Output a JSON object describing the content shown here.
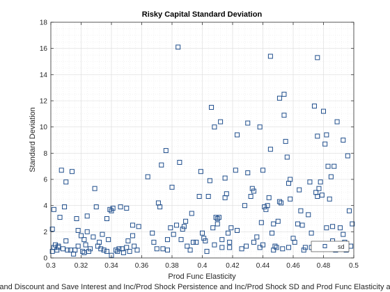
{
  "chart_data": {
    "type": "scatter",
    "title": "Risky Capital Standard Deviation",
    "xlabel": "Prod Func Elasticity",
    "ylabel": "Standard Deviation",
    "caption": "and Discount and Save Interest and Inc/Prod Shock Persistence and Inc/Prod Shock SD and Prod Func Elasticity a",
    "xlim": [
      0.3,
      0.5
    ],
    "ylim": [
      0,
      18
    ],
    "xticks": [
      "0.3",
      "0.32",
      "0.34",
      "0.36",
      "0.38",
      "0.4",
      "0.42",
      "0.44",
      "0.46",
      "0.48",
      "0.5"
    ],
    "yticks": [
      "0",
      "2",
      "4",
      "6",
      "8",
      "10",
      "12",
      "14",
      "16",
      "18"
    ],
    "grid": true,
    "minor_grid": true,
    "marker": "square",
    "marker_color": "#1f4e8c",
    "legend": {
      "entries": [
        "sd"
      ],
      "placement": "bottom-right"
    },
    "series": [
      {
        "name": "sd",
        "points": [
          [
            0.301,
            0.5
          ],
          [
            0.301,
            2.2
          ],
          [
            0.302,
            3.7
          ],
          [
            0.302,
            0.8
          ],
          [
            0.303,
            1.0
          ],
          [
            0.304,
            0.6
          ],
          [
            0.305,
            0.8
          ],
          [
            0.305,
            0.9
          ],
          [
            0.306,
            3.1
          ],
          [
            0.307,
            6.7
          ],
          [
            0.308,
            0.7
          ],
          [
            0.309,
            3.9
          ],
          [
            0.31,
            1.3
          ],
          [
            0.31,
            5.8
          ],
          [
            0.311,
            0.6
          ],
          [
            0.313,
            0.6
          ],
          [
            0.314,
            6.6
          ],
          [
            0.315,
            0.3
          ],
          [
            0.316,
            0.6
          ],
          [
            0.317,
            3.0
          ],
          [
            0.318,
            2.1
          ],
          [
            0.318,
            0.9
          ],
          [
            0.32,
            1.7
          ],
          [
            0.321,
            0.5
          ],
          [
            0.322,
            1.4
          ],
          [
            0.322,
            0.4
          ],
          [
            0.323,
            1.0
          ],
          [
            0.324,
            3.2
          ],
          [
            0.324,
            2.0
          ],
          [
            0.325,
            0.5
          ],
          [
            0.326,
            0.7
          ],
          [
            0.328,
            1.6
          ],
          [
            0.329,
            5.3
          ],
          [
            0.33,
            3.9
          ],
          [
            0.331,
            0.9
          ],
          [
            0.332,
            1.2
          ],
          [
            0.333,
            0.7
          ],
          [
            0.334,
            1.8
          ],
          [
            0.335,
            0.6
          ],
          [
            0.337,
            3.0
          ],
          [
            0.337,
            0.5
          ],
          [
            0.338,
            1.4
          ],
          [
            0.339,
            3.7
          ],
          [
            0.34,
            0.2
          ],
          [
            0.34,
            3.6
          ],
          [
            0.341,
            3.8
          ],
          [
            0.343,
            0.6
          ],
          [
            0.344,
            0.5
          ],
          [
            0.345,
            0.7
          ],
          [
            0.346,
            3.9
          ],
          [
            0.347,
            0.7
          ],
          [
            0.348,
            0.4
          ],
          [
            0.35,
            3.8
          ],
          [
            0.35,
            0.8
          ],
          [
            0.351,
            1.3
          ],
          [
            0.352,
            0.5
          ],
          [
            0.354,
            1.7
          ],
          [
            0.354,
            2.5
          ],
          [
            0.355,
            0.9
          ],
          [
            0.357,
            0.6
          ],
          [
            0.358,
            2.4
          ],
          [
            0.364,
            6.2
          ],
          [
            0.367,
            1.9
          ],
          [
            0.368,
            1.2
          ],
          [
            0.37,
            0.7
          ],
          [
            0.371,
            4.2
          ],
          [
            0.372,
            3.9
          ],
          [
            0.373,
            7.1
          ],
          [
            0.374,
            0.7
          ],
          [
            0.376,
            8.2
          ],
          [
            0.377,
            0.6
          ],
          [
            0.377,
            1.4
          ],
          [
            0.379,
            2.3
          ],
          [
            0.38,
            5.4
          ],
          [
            0.381,
            1.8
          ],
          [
            0.383,
            2.5
          ],
          [
            0.384,
            16.1
          ],
          [
            0.385,
            7.3
          ],
          [
            0.386,
            1.4
          ],
          [
            0.387,
            2.2
          ],
          [
            0.388,
            2.4
          ],
          [
            0.389,
            2.8
          ],
          [
            0.39,
            0.9
          ],
          [
            0.392,
            0.6
          ],
          [
            0.393,
            3.4
          ],
          [
            0.394,
            1.2
          ],
          [
            0.396,
            1.2
          ],
          [
            0.398,
            4.7
          ],
          [
            0.399,
            6.6
          ],
          [
            0.4,
            1.9
          ],
          [
            0.401,
            1.5
          ],
          [
            0.402,
            1.3
          ],
          [
            0.403,
            0.5
          ],
          [
            0.404,
            4.7
          ],
          [
            0.405,
            5.9
          ],
          [
            0.406,
            11.5
          ],
          [
            0.407,
            2.3
          ],
          [
            0.408,
            10.0
          ],
          [
            0.408,
            1.0
          ],
          [
            0.409,
            3.1
          ],
          [
            0.41,
            2.6
          ],
          [
            0.41,
            3.0
          ],
          [
            0.411,
            3.1
          ],
          [
            0.412,
            10.4
          ],
          [
            0.413,
            1.4
          ],
          [
            0.413,
            0.8
          ],
          [
            0.415,
            6.1
          ],
          [
            0.415,
            4.6
          ],
          [
            0.416,
            4.9
          ],
          [
            0.417,
            1.9
          ],
          [
            0.418,
            1.2
          ],
          [
            0.418,
            0.8
          ],
          [
            0.419,
            2.3
          ],
          [
            0.422,
            6.7
          ],
          [
            0.423,
            9.4
          ],
          [
            0.423,
            2.1
          ],
          [
            0.426,
            0.7
          ],
          [
            0.428,
            4.0
          ],
          [
            0.429,
            0.9
          ],
          [
            0.43,
            10.3
          ],
          [
            0.43,
            6.5
          ],
          [
            0.432,
            4.7
          ],
          [
            0.433,
            5.3
          ],
          [
            0.434,
            1.2
          ],
          [
            0.434,
            5.1
          ],
          [
            0.436,
            1.6
          ],
          [
            0.438,
            10.0
          ],
          [
            0.438,
            0.8
          ],
          [
            0.439,
            2.7
          ],
          [
            0.44,
            6.7
          ],
          [
            0.44,
            1.0
          ],
          [
            0.441,
            3.9
          ],
          [
            0.442,
            3.7
          ],
          [
            0.443,
            4.0
          ],
          [
            0.444,
            4.6
          ],
          [
            0.445,
            8.3
          ],
          [
            0.445,
            15.4
          ],
          [
            0.446,
            1.9
          ],
          [
            0.447,
            0.6
          ],
          [
            0.447,
            2.6
          ],
          [
            0.448,
            0.9
          ],
          [
            0.449,
            0.8
          ],
          [
            0.45,
            2.8
          ],
          [
            0.451,
            4.3
          ],
          [
            0.451,
            12.2
          ],
          [
            0.452,
            4.2
          ],
          [
            0.453,
            0.7
          ],
          [
            0.454,
            12.5
          ],
          [
            0.454,
            10.9
          ],
          [
            0.455,
            8.9
          ],
          [
            0.456,
            7.7
          ],
          [
            0.457,
            0.8
          ],
          [
            0.457,
            5.7
          ],
          [
            0.458,
            6.0
          ],
          [
            0.458,
            4.5
          ],
          [
            0.46,
            1.5
          ],
          [
            0.461,
            1.2
          ],
          [
            0.463,
            2.6
          ],
          [
            0.464,
            5.2
          ],
          [
            0.465,
            3.6
          ],
          [
            0.466,
            2.5
          ],
          [
            0.467,
            0.6
          ],
          [
            0.468,
            0.8
          ],
          [
            0.47,
            3.3
          ],
          [
            0.471,
            5.8
          ],
          [
            0.472,
            0.8
          ],
          [
            0.472,
            1.9
          ],
          [
            0.474,
            11.6
          ],
          [
            0.475,
            5.0
          ],
          [
            0.476,
            15.3
          ],
          [
            0.476,
            9.3
          ],
          [
            0.476,
            4.7
          ],
          [
            0.477,
            5.3
          ],
          [
            0.478,
            5.8
          ],
          [
            0.479,
            4.8
          ],
          [
            0.48,
            11.2
          ],
          [
            0.481,
            8.7
          ],
          [
            0.482,
            9.4
          ],
          [
            0.482,
            2.3
          ],
          [
            0.482,
            0.8
          ],
          [
            0.483,
            7.0
          ],
          [
            0.484,
            4.5
          ],
          [
            0.485,
            6.2
          ],
          [
            0.486,
            1.3
          ],
          [
            0.486,
            2.4
          ],
          [
            0.487,
            7.0
          ],
          [
            0.488,
            0.6
          ],
          [
            0.489,
            1.0
          ],
          [
            0.489,
            10.4
          ],
          [
            0.491,
            2.3
          ],
          [
            0.493,
            9.0
          ],
          [
            0.493,
            1.8
          ],
          [
            0.494,
            1.2
          ],
          [
            0.495,
            0.6
          ],
          [
            0.496,
            7.8
          ],
          [
            0.497,
            3.6
          ],
          [
            0.498,
            0.9
          ],
          [
            0.499,
            2.6
          ]
        ]
      }
    ]
  }
}
